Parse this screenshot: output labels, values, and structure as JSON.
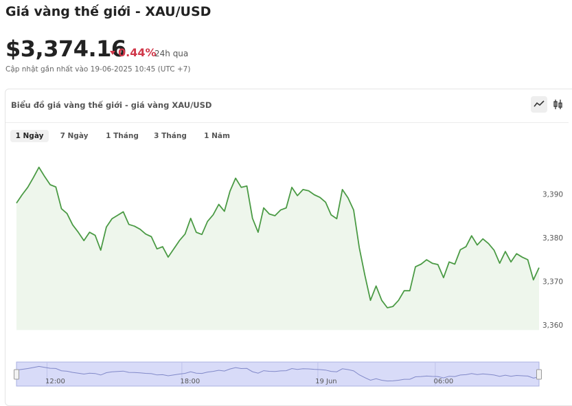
{
  "header": {
    "title": "Giá vàng thế giới - XAU/USD",
    "price": "$3,374.16",
    "change": "0.44%",
    "change_period": "24h qua",
    "updated": "Cập nhật gần nhất vào 19-06-2025 10:45 (UTC +7)"
  },
  "card": {
    "title": "Biểu đồ giá vàng thế giới - giá vàng XAU/USD",
    "tabs": [
      "1 Ngày",
      "7 Ngày",
      "1 Tháng",
      "3 Tháng",
      "1 Năm"
    ]
  },
  "chart_data": {
    "type": "line",
    "color": "#4a9a44",
    "area_color": "#eef6ec",
    "grid": false,
    "values": [
      3388.1,
      3390,
      3391.7,
      3393.9,
      3396.3,
      3394.2,
      3392.3,
      3391.8,
      3386.8,
      3385.7,
      3383.1,
      3381.4,
      3379.5,
      3381.4,
      3380.7,
      3377.3,
      3382.6,
      3384.5,
      3385.3,
      3386.1,
      3383.2,
      3382.8,
      3382.1,
      3381,
      3380.4,
      3377.6,
      3378.1,
      3375.7,
      3377.6,
      3379.5,
      3381,
      3384.6,
      3381.4,
      3380.9,
      3383.9,
      3385.4,
      3387.8,
      3386.2,
      3390.8,
      3393.8,
      3391.7,
      3392,
      3384.6,
      3381.4,
      3387,
      3385.6,
      3385.2,
      3386.5,
      3387,
      3391.7,
      3389.8,
      3391.2,
      3390.9,
      3390,
      3389.4,
      3388.3,
      3385.4,
      3384.5,
      3391.2,
      3389.3,
      3386.5,
      3377.9,
      3371.6,
      3365.8,
      3369.1,
      3365.8,
      3364.1,
      3364.4,
      3365.8,
      3368,
      3368,
      3373.5,
      3374.1,
      3375.1,
      3374.3,
      3374,
      3371,
      3374.6,
      3374.1,
      3377.4,
      3378.1,
      3380.6,
      3378.5,
      3379.9,
      3378.8,
      3377.3,
      3374.3,
      3377,
      3374.6,
      3376.5,
      3375.7,
      3375.1,
      3370.5,
      3373.3
    ],
    "xlim": [
      0,
      93
    ],
    "ylim": [
      3359,
      3400
    ],
    "yticks": [
      {
        "value": 3360,
        "label": "3,360"
      },
      {
        "value": 3370,
        "label": "3,370"
      },
      {
        "value": 3380,
        "label": "3,380"
      },
      {
        "value": 3390,
        "label": "3,390"
      }
    ],
    "navigator_xticks": [
      {
        "value": 6.9,
        "label": "12:00"
      },
      {
        "value": 30.9,
        "label": "18:00"
      },
      {
        "value": 55.1,
        "label": "19 Jun"
      },
      {
        "value": 76,
        "label": "06:00"
      }
    ]
  }
}
